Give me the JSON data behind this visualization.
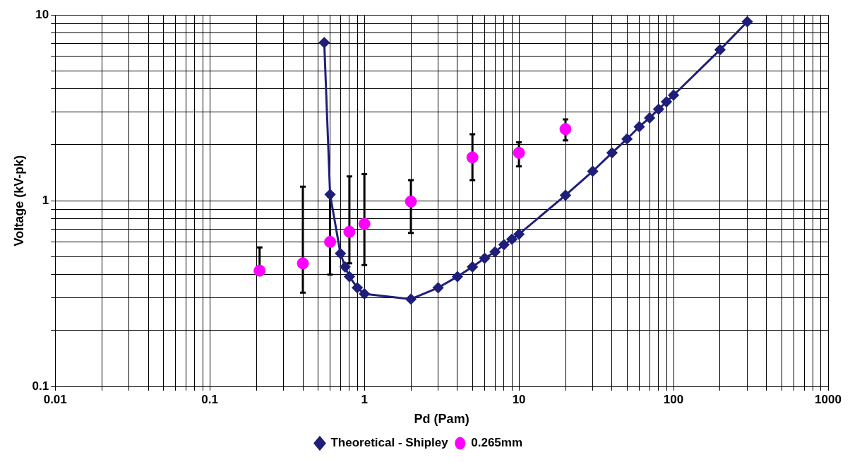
{
  "chart_data": {
    "type": "line",
    "xlabel": "Pd (Pam)",
    "ylabel": "Voltage (kV-pk)",
    "log": "xy",
    "grid": true,
    "legend": "bottom",
    "xlim": [
      0.01,
      1000
    ],
    "ylim": [
      0.1,
      10
    ],
    "xticks": [
      {
        "value": 0.01,
        "label": "0.01"
      },
      {
        "value": 0.02,
        "label": null
      },
      {
        "value": 0.03,
        "label": null
      },
      {
        "value": 0.04,
        "label": null
      },
      {
        "value": 0.05,
        "label": null
      },
      {
        "value": 0.06,
        "label": null
      },
      {
        "value": 0.07,
        "label": null
      },
      {
        "value": 0.08,
        "label": null
      },
      {
        "value": 0.09,
        "label": null
      },
      {
        "value": 0.1,
        "label": "0.1"
      },
      {
        "value": 0.2,
        "label": null
      },
      {
        "value": 0.3,
        "label": null
      },
      {
        "value": 0.4,
        "label": null
      },
      {
        "value": 0.5,
        "label": null
      },
      {
        "value": 0.6,
        "label": null
      },
      {
        "value": 0.7,
        "label": null
      },
      {
        "value": 0.8,
        "label": null
      },
      {
        "value": 0.9,
        "label": null
      },
      {
        "value": 1,
        "label": "1"
      },
      {
        "value": 2,
        "label": null
      },
      {
        "value": 3,
        "label": null
      },
      {
        "value": 4,
        "label": null
      },
      {
        "value": 5,
        "label": null
      },
      {
        "value": 6,
        "label": null
      },
      {
        "value": 7,
        "label": null
      },
      {
        "value": 8,
        "label": null
      },
      {
        "value": 9,
        "label": null
      },
      {
        "value": 10,
        "label": "10"
      },
      {
        "value": 20,
        "label": null
      },
      {
        "value": 30,
        "label": null
      },
      {
        "value": 40,
        "label": null
      },
      {
        "value": 50,
        "label": null
      },
      {
        "value": 60,
        "label": null
      },
      {
        "value": 70,
        "label": null
      },
      {
        "value": 80,
        "label": null
      },
      {
        "value": 90,
        "label": null
      },
      {
        "value": 100,
        "label": "100"
      },
      {
        "value": 200,
        "label": null
      },
      {
        "value": 300,
        "label": null
      },
      {
        "value": 400,
        "label": null
      },
      {
        "value": 500,
        "label": null
      },
      {
        "value": 600,
        "label": null
      },
      {
        "value": 700,
        "label": null
      },
      {
        "value": 800,
        "label": null
      },
      {
        "value": 900,
        "label": null
      },
      {
        "value": 1000,
        "label": "1000"
      }
    ],
    "yticks": [
      {
        "value": 0.1,
        "label": "0.1"
      },
      {
        "value": 0.2,
        "label": null
      },
      {
        "value": 0.3,
        "label": null
      },
      {
        "value": 0.4,
        "label": null
      },
      {
        "value": 0.5,
        "label": null
      },
      {
        "value": 0.6,
        "label": null
      },
      {
        "value": 0.7,
        "label": null
      },
      {
        "value": 0.8,
        "label": null
      },
      {
        "value": 0.9,
        "label": null
      },
      {
        "value": 1,
        "label": "1"
      },
      {
        "value": 2,
        "label": null
      },
      {
        "value": 3,
        "label": null
      },
      {
        "value": 4,
        "label": null
      },
      {
        "value": 5,
        "label": null
      },
      {
        "value": 6,
        "label": null
      },
      {
        "value": 7,
        "label": null
      },
      {
        "value": 8,
        "label": null
      },
      {
        "value": 9,
        "label": null
      },
      {
        "value": 10,
        "label": "10"
      }
    ],
    "series": [
      {
        "name": "Theoretical - Shipley",
        "marker": "diamond",
        "line_style": "solid",
        "color": "#1f1f7a",
        "x": [
          0.55,
          0.6,
          0.7,
          0.75,
          0.8,
          0.9,
          1,
          2,
          3,
          4,
          5,
          6,
          7,
          8,
          9,
          10,
          20,
          30,
          40,
          50,
          60,
          70,
          80,
          90,
          100,
          200,
          300
        ],
        "values": [
          7.1,
          1.08,
          0.52,
          0.44,
          0.39,
          0.34,
          0.315,
          0.295,
          0.34,
          0.39,
          0.44,
          0.49,
          0.53,
          0.58,
          0.62,
          0.66,
          1.07,
          1.44,
          1.81,
          2.15,
          2.5,
          2.79,
          3.11,
          3.41,
          3.7,
          6.5,
          9.2
        ]
      },
      {
        "name": "0.265mm",
        "type": "scatter",
        "marker": "circle",
        "color": "#ff00ff",
        "x": [
          0.21,
          0.4,
          0.6,
          0.8,
          1,
          2,
          5,
          10,
          20
        ],
        "values": [
          0.42,
          0.46,
          0.6,
          0.68,
          0.75,
          0.99,
          1.71,
          1.81,
          2.43
        ],
        "errors": [
          [
            0.4,
            0.56
          ],
          [
            0.32,
            1.19
          ],
          [
            0.4,
            1.05
          ],
          [
            0.46,
            1.35
          ],
          [
            0.45,
            1.39
          ],
          [
            0.67,
            1.29
          ],
          [
            1.29,
            2.28
          ],
          [
            1.53,
            2.06
          ],
          [
            2.11,
            2.74
          ]
        ]
      }
    ]
  }
}
